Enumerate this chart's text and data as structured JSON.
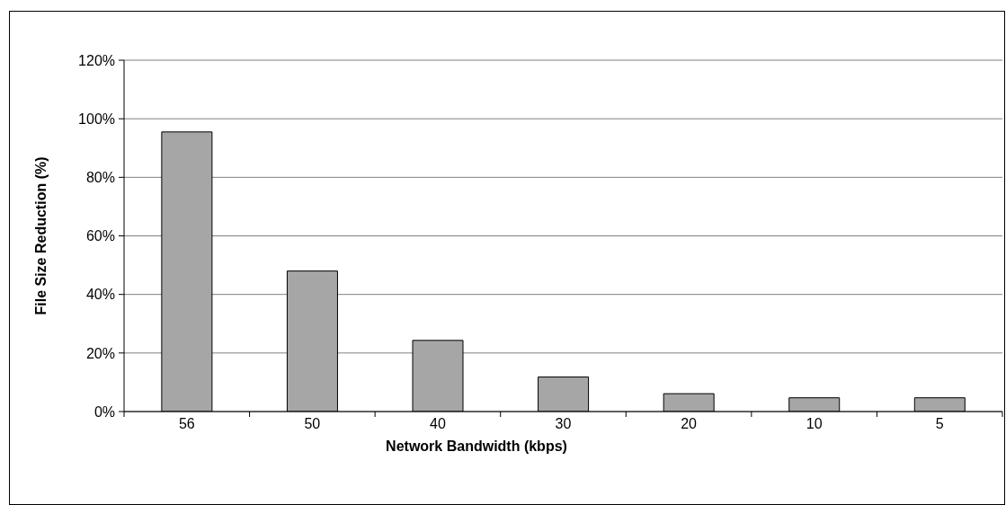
{
  "chart_data": {
    "type": "bar",
    "xlabel": "Network Bandwidth (kbps)",
    "ylabel": "File Size Reduction (%)",
    "categories": [
      "56",
      "50",
      "40",
      "30",
      "20",
      "10",
      "5"
    ],
    "values": [
      95.5,
      48,
      24.3,
      11.8,
      6.1,
      4.7,
      4.7
    ],
    "color": "#a6a6a6",
    "ylim": [
      0,
      120
    ],
    "yticks": [
      {
        "value": 0,
        "label": "0%"
      },
      {
        "value": 20,
        "label": "20%"
      },
      {
        "value": 40,
        "label": "40%"
      },
      {
        "value": 60,
        "label": "60%"
      },
      {
        "value": 80,
        "label": "80%"
      },
      {
        "value": 100,
        "label": "100%"
      },
      {
        "value": 120,
        "label": "120%"
      }
    ],
    "grid": "y"
  }
}
